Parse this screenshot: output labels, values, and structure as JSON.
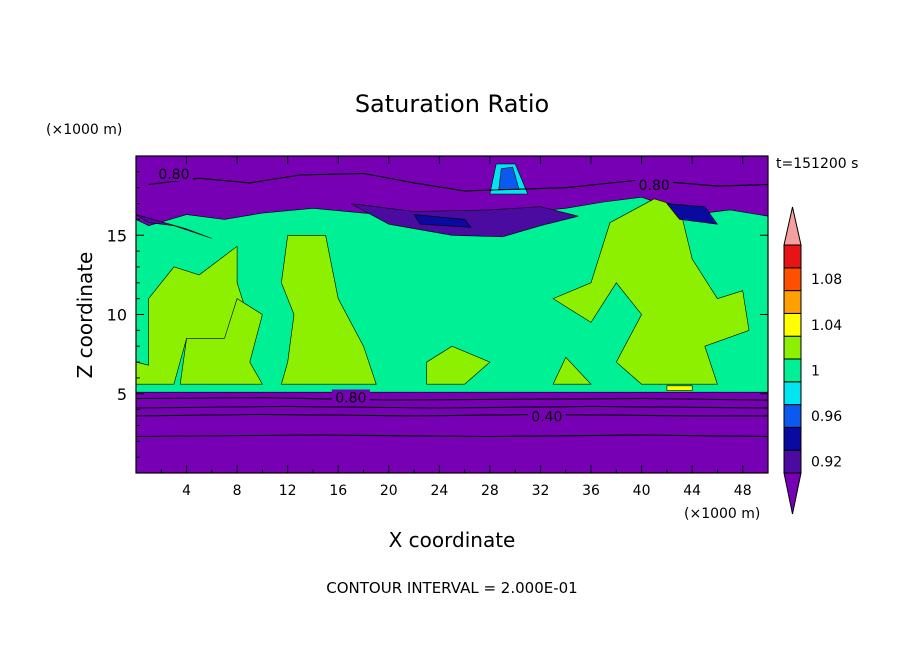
{
  "chart_data": {
    "type": "heatmap",
    "title": "Saturation Ratio",
    "xlabel": "X coordinate",
    "ylabel": "Z coordinate",
    "x_units": "(×1000 m)",
    "y_units": "(×1000 m)",
    "time_label": "t=151200 s",
    "footer": "CONTOUR INTERVAL = 2.000E-01",
    "xlim": [
      0,
      50
    ],
    "ylim": [
      0,
      20
    ],
    "x_ticks": [
      4,
      8,
      12,
      16,
      20,
      24,
      28,
      32,
      36,
      40,
      44,
      48
    ],
    "y_ticks": [
      5,
      10,
      15
    ],
    "contour_labels": [
      {
        "text": "0.80",
        "x": 3,
        "y": 18.8
      },
      {
        "text": "0.80",
        "x": 41,
        "y": 18.1
      },
      {
        "text": "0.80",
        "x": 17,
        "y": 4.7
      },
      {
        "text": "0.40",
        "x": 32.5,
        "y": 3.5
      }
    ],
    "colorbar": {
      "levels": [
        0.92,
        0.94,
        0.96,
        0.98,
        1.0,
        1.02,
        1.04,
        1.06,
        1.08,
        1.1
      ],
      "tick_labels": [
        "0.92",
        "0.96",
        "1",
        "1.04",
        "1.08"
      ],
      "colors": [
        "#4b0aa0",
        "#0a0aa0",
        "#0a5af0",
        "#00e6f0",
        "#00f096",
        "#8cf000",
        "#ffff00",
        "#ffa000",
        "#ff5000",
        "#e61414",
        "#f5a0a0"
      ],
      "under_color": "#7800b4",
      "over_color": "#f5a0a0"
    }
  }
}
